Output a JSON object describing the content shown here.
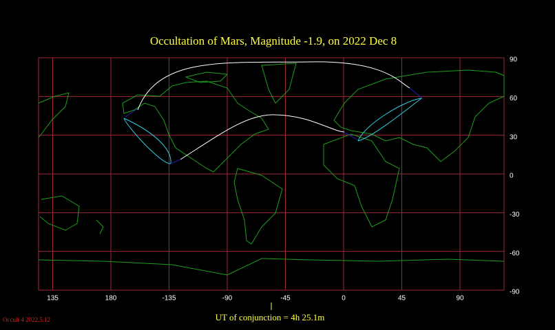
{
  "header": {
    "title": "Occultation  of  Mars,      Magnitude -1.9,   on  2022 Dec  8"
  },
  "map": {
    "longitude_labels": [
      "135",
      "180",
      "-135",
      "-90",
      "-45",
      "0",
      "45",
      "90"
    ],
    "latitude_labels": [
      "90",
      "60",
      "30",
      "0",
      "-30",
      "-60",
      "-90"
    ]
  },
  "footer": {
    "conjunction": "UT of conjunction =  4h 25.1m",
    "version": "Occult 4 2022.5.12"
  }
}
